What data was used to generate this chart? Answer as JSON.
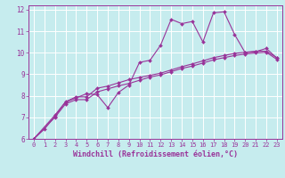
{
  "bg_color": "#c6ecee",
  "line_color": "#993399",
  "grid_color": "#ffffff",
  "xlabel": "Windchill (Refroidissement éolien,°C)",
  "xlabel_fontsize": 6.0,
  "xtick_fontsize": 5.0,
  "ytick_fontsize": 5.5,
  "xlim": [
    -0.5,
    23.5
  ],
  "ylim": [
    6,
    12.2
  ],
  "yticks": [
    6,
    7,
    8,
    9,
    10,
    11,
    12
  ],
  "xticks": [
    0,
    1,
    2,
    3,
    4,
    5,
    6,
    7,
    8,
    9,
    10,
    11,
    12,
    13,
    14,
    15,
    16,
    17,
    18,
    19,
    20,
    21,
    22,
    23
  ],
  "line1_x": [
    0,
    1,
    2,
    3,
    4,
    5,
    6,
    7,
    8,
    9,
    10,
    11,
    12,
    13,
    14,
    15,
    16,
    17,
    18,
    19,
    20,
    21,
    22,
    23
  ],
  "line1_y": [
    6.0,
    6.45,
    7.05,
    7.7,
    7.9,
    8.1,
    8.05,
    7.45,
    8.15,
    8.5,
    9.55,
    9.65,
    10.35,
    11.55,
    11.35,
    11.45,
    10.5,
    11.85,
    11.9,
    10.85,
    10.0,
    10.05,
    10.2,
    9.75
  ],
  "line2_x": [
    0,
    2,
    3,
    4,
    5,
    6,
    7,
    8,
    9,
    10,
    11,
    12,
    13,
    14,
    15,
    16,
    17,
    18,
    19,
    20,
    21,
    22,
    23
  ],
  "line2_y": [
    6.0,
    7.1,
    7.72,
    7.95,
    7.95,
    8.35,
    8.45,
    8.6,
    8.75,
    8.85,
    8.95,
    9.05,
    9.2,
    9.35,
    9.48,
    9.62,
    9.77,
    9.87,
    9.97,
    10.02,
    10.07,
    10.07,
    9.77
  ],
  "line3_x": [
    0,
    2,
    3,
    4,
    5,
    6,
    7,
    8,
    9,
    10,
    11,
    12,
    13,
    14,
    15,
    16,
    17,
    18,
    19,
    20,
    21,
    22,
    23
  ],
  "line3_y": [
    6.0,
    7.0,
    7.62,
    7.82,
    7.82,
    8.18,
    8.32,
    8.46,
    8.57,
    8.72,
    8.87,
    8.97,
    9.12,
    9.27,
    9.38,
    9.52,
    9.67,
    9.77,
    9.87,
    9.94,
    9.99,
    10.02,
    9.69
  ]
}
